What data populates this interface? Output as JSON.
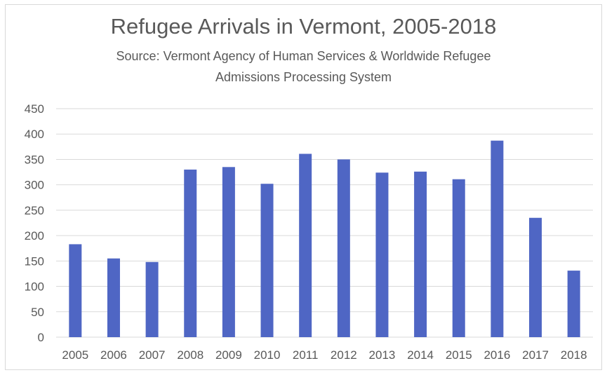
{
  "chart_data": {
    "type": "bar",
    "title": "Refugee Arrivals in Vermont, 2005-2018",
    "subtitle_lines": [
      "Source: Vermont Agency of Human Services & Worldwide Refugee",
      "Admissions Processing System"
    ],
    "categories": [
      "2005",
      "2006",
      "2007",
      "2008",
      "2009",
      "2010",
      "2011",
      "2012",
      "2013",
      "2014",
      "2015",
      "2016",
      "2017",
      "2018"
    ],
    "values": [
      183,
      155,
      148,
      330,
      335,
      302,
      361,
      350,
      324,
      326,
      311,
      387,
      235,
      131
    ],
    "ylim": [
      0,
      450
    ],
    "yticks": [
      0,
      50,
      100,
      150,
      200,
      250,
      300,
      350,
      400,
      450
    ],
    "grid": true,
    "legend": "none",
    "bar_color": "#4f66c4",
    "grid_color": "#d9d9d9",
    "text_color": "#595959"
  }
}
